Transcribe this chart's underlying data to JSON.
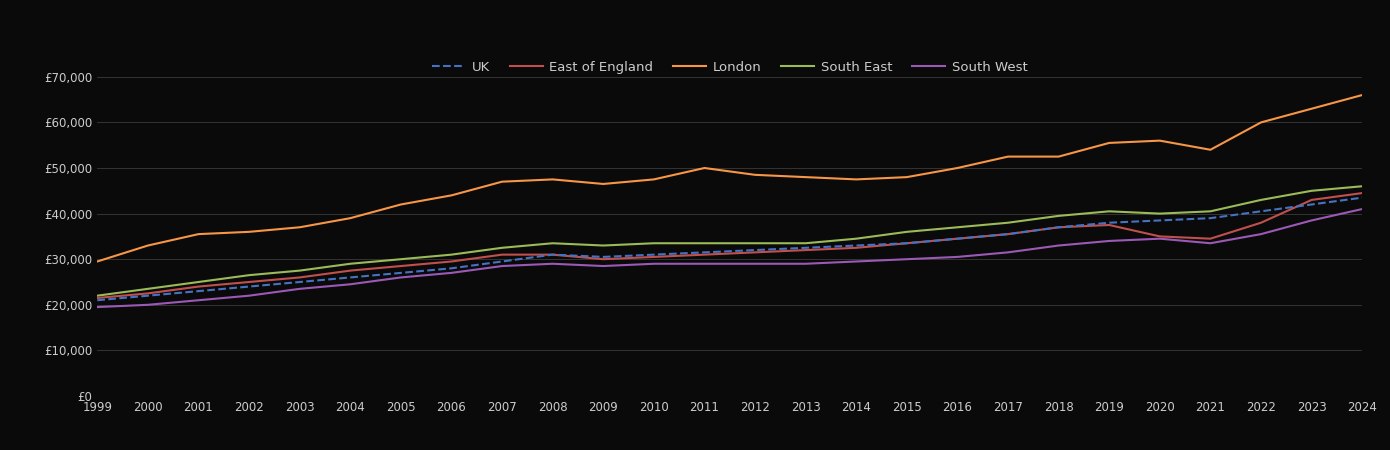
{
  "years": [
    1999,
    2000,
    2001,
    2002,
    2003,
    2004,
    2005,
    2006,
    2007,
    2008,
    2009,
    2010,
    2011,
    2012,
    2013,
    2014,
    2015,
    2016,
    2017,
    2018,
    2019,
    2020,
    2021,
    2022,
    2023,
    2024
  ],
  "UK": [
    21000,
    22000,
    23000,
    24000,
    25000,
    26000,
    27000,
    28000,
    29500,
    31000,
    30500,
    31000,
    31500,
    32000,
    32500,
    33000,
    33500,
    34500,
    35500,
    37000,
    38000,
    38500,
    39000,
    40500,
    42000,
    43500
  ],
  "East_of_England": [
    21500,
    22500,
    24000,
    25000,
    26000,
    27500,
    28500,
    29500,
    31000,
    31000,
    30000,
    30500,
    31000,
    31500,
    32000,
    32500,
    33500,
    34500,
    35500,
    37000,
    37500,
    35000,
    34500,
    38000,
    43000,
    44500
  ],
  "London": [
    29500,
    33000,
    35500,
    36000,
    37000,
    39000,
    42000,
    44000,
    47000,
    47500,
    46500,
    47500,
    50000,
    48500,
    48000,
    47500,
    48000,
    50000,
    52500,
    52500,
    55500,
    56000,
    54000,
    60000,
    63000,
    66000
  ],
  "South_East": [
    22000,
    23500,
    25000,
    26500,
    27500,
    29000,
    30000,
    31000,
    32500,
    33500,
    33000,
    33500,
    33500,
    33500,
    33500,
    34500,
    36000,
    37000,
    38000,
    39500,
    40500,
    40000,
    40500,
    43000,
    45000,
    46000
  ],
  "South_West": [
    19500,
    20000,
    21000,
    22000,
    23500,
    24500,
    26000,
    27000,
    28500,
    29000,
    28500,
    29000,
    29000,
    29000,
    29000,
    29500,
    30000,
    30500,
    31500,
    33000,
    34000,
    34500,
    33500,
    35500,
    38500,
    41000
  ],
  "colors": {
    "UK": "#4472c4",
    "East_of_England": "#c0504d",
    "London": "#f79646",
    "South_East": "#9bbb59",
    "South_West": "#9b59b6"
  },
  "background_color": "#0a0a0a",
  "grid_color": "#3a3a3a",
  "text_color": "#cccccc",
  "ylim": [
    0,
    75000
  ],
  "yticks": [
    0,
    10000,
    20000,
    30000,
    40000,
    50000,
    60000,
    70000
  ],
  "title": ""
}
